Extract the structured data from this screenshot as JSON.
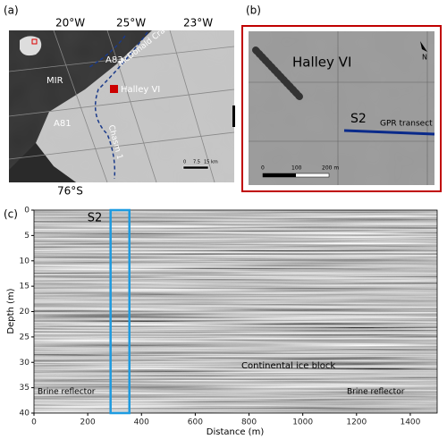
{
  "panel_a": {
    "label": "(a)",
    "lon_labels": [
      "20°W",
      "25°W",
      "23°W"
    ],
    "lat_label": "76°S",
    "places": [
      "MIR",
      "A83",
      "Halley VI",
      "A81",
      "Chasm 1",
      "McDonald Crack"
    ],
    "scale": [
      "0",
      "7.5",
      "15 km"
    ]
  },
  "panel_b": {
    "label": "(b)",
    "station": "Halley VI",
    "site": "S2",
    "transect": "GPR transect",
    "north": "N",
    "scale": [
      "0",
      "100",
      "200 m"
    ]
  },
  "panel_c": {
    "label": "(c)",
    "y_label": "Depth (m)",
    "x_label": "Distance (m)",
    "ylim": [
      0,
      40
    ],
    "yticks": [
      0,
      5,
      10,
      15,
      20,
      25,
      30,
      35,
      40
    ],
    "xlim": [
      0,
      1500
    ],
    "xticks": [
      0,
      200,
      400,
      600,
      800,
      1000,
      1200,
      1400
    ],
    "site": "S2",
    "site_range": [
      285,
      355
    ],
    "annotations": [
      "Continental ice block",
      "Brine reflector",
      "Brine reflector"
    ]
  }
}
